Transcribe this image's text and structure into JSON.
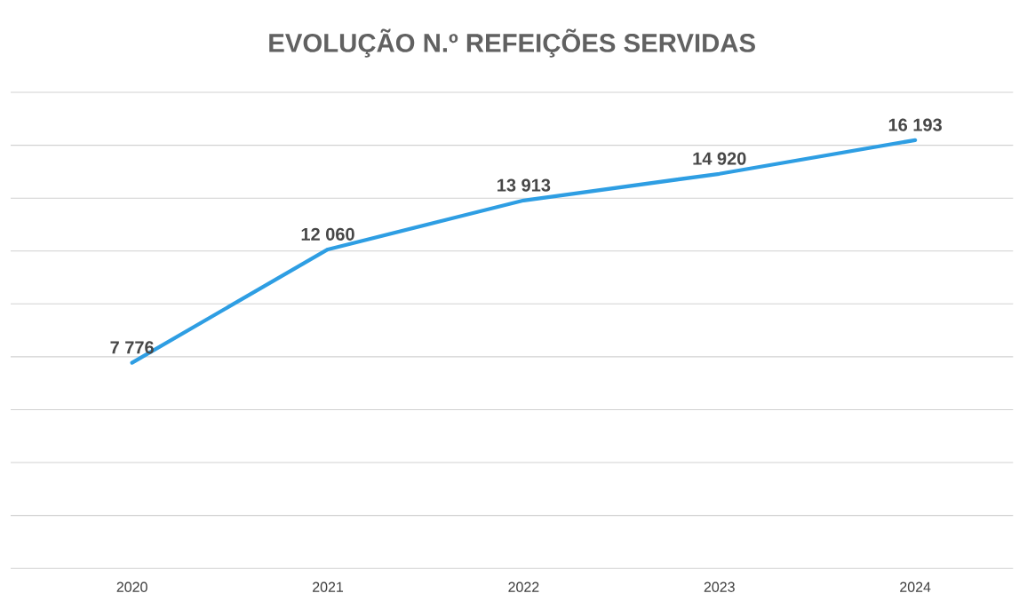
{
  "chart_data": {
    "type": "line",
    "title": "EVOLUÇÃO N.º REFEIÇÕES SERVIDAS",
    "categories": [
      "2020",
      "2021",
      "2022",
      "2023",
      "2024"
    ],
    "series": [
      {
        "color": "#2e9ee3",
        "values": [
          7776,
          12060,
          13913,
          14920,
          16193
        ],
        "value_labels": [
          "7 776",
          "12 060",
          "13 913",
          "14 920",
          "16 193"
        ]
      }
    ],
    "ylim": [
      0,
      18000
    ],
    "yticks": [
      {
        "value": 0,
        "label": null
      },
      {
        "value": 2000,
        "label": null
      },
      {
        "value": 4000,
        "label": null
      },
      {
        "value": 6000,
        "label": null
      },
      {
        "value": 8000,
        "label": null
      },
      {
        "value": 10000,
        "label": null
      },
      {
        "value": 12000,
        "label": null
      },
      {
        "value": 14000,
        "label": null
      },
      {
        "value": 16000,
        "label": null
      },
      {
        "value": 18000,
        "label": null
      }
    ],
    "grid": "y",
    "tick_labels": "x",
    "marker": "none",
    "line_style": "solid"
  }
}
